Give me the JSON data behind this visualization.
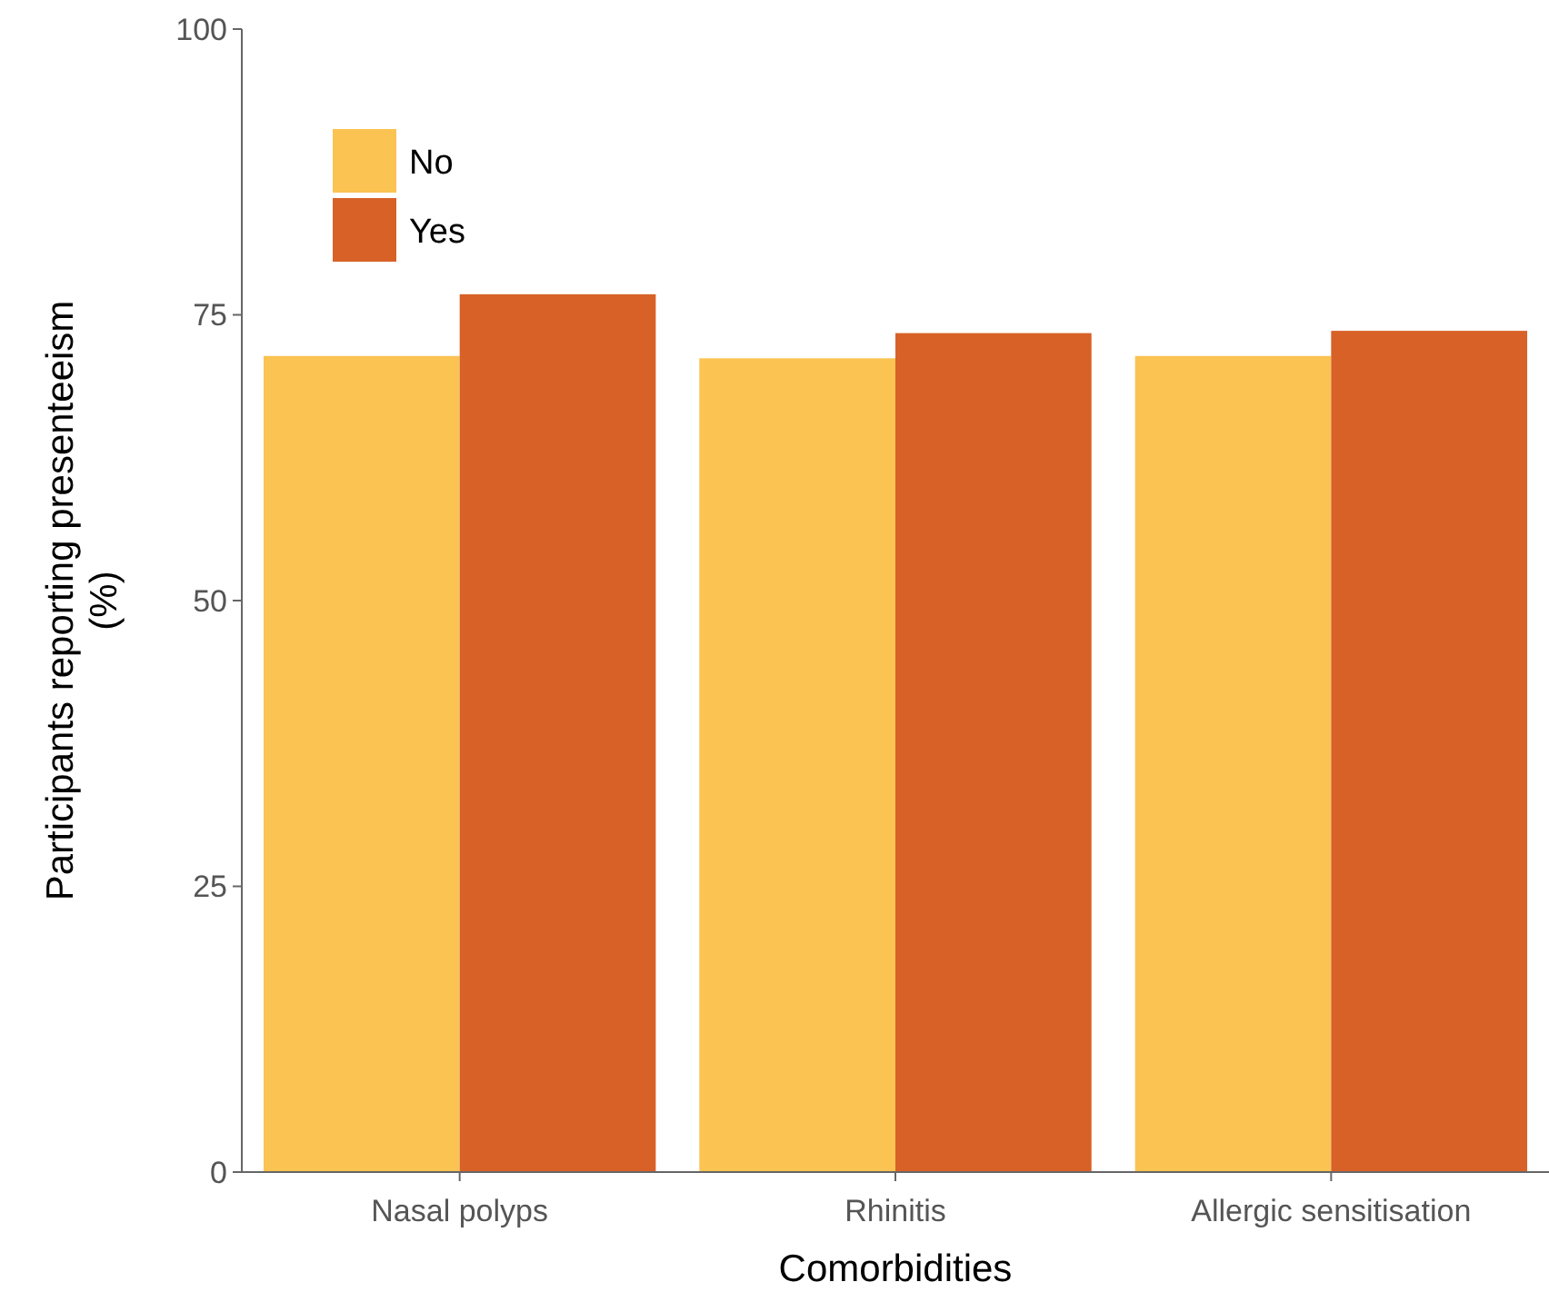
{
  "chart_data": {
    "type": "bar",
    "xlabel": "Comorbidities",
    "ylabel": "Participants reporting presenteeism (%)",
    "categories": [
      "Nasal polyps",
      "Rhinitis",
      "Allergic sensitisation"
    ],
    "series": [
      {
        "name": "No",
        "color": "#fbc352",
        "values": [
          71.4,
          71.2,
          71.4
        ]
      },
      {
        "name": "Yes",
        "color": "#d86127",
        "values": [
          76.8,
          73.4,
          73.6
        ]
      }
    ],
    "ylim": [
      0,
      100
    ],
    "yticks": [
      0,
      25,
      50,
      75,
      100
    ],
    "grid": false,
    "legend": "top left"
  }
}
